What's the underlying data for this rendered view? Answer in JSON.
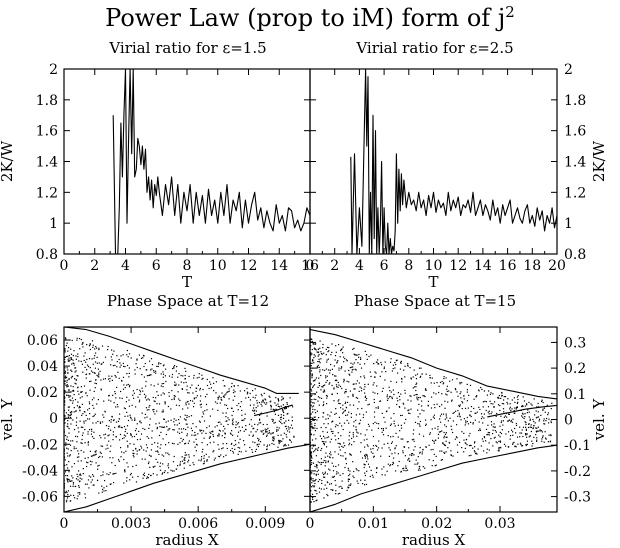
{
  "figure": {
    "title": "Power Law (prop to iM) form of j",
    "title_sup": "2"
  },
  "chart_data": [
    {
      "type": "line",
      "subtitle": "Virial ratio for ε=1.5",
      "xlabel": "T",
      "ylabel": "2K/W",
      "xlim": [
        0,
        16
      ],
      "ylim": [
        0.8,
        2.0
      ],
      "xticks": [
        0,
        2,
        4,
        6,
        8,
        10,
        12,
        14,
        16
      ],
      "yticks": [
        0.8,
        1,
        1.2,
        1.4,
        1.6,
        1.8,
        2
      ],
      "yaxis_side": "left",
      "grid": false,
      "series": [
        {
          "x": [
            3.2,
            3.35,
            3.5,
            3.6,
            3.7,
            3.8,
            3.9,
            4.0,
            4.1,
            4.2,
            4.3,
            4.4,
            4.5,
            4.6,
            4.7,
            4.8,
            4.9,
            5.0,
            5.1,
            5.2,
            5.3,
            5.4,
            5.5,
            5.6,
            5.7,
            5.8,
            5.9,
            6.0,
            6.1,
            6.2,
            6.4,
            6.6,
            6.8,
            7.0,
            7.2,
            7.4,
            7.6,
            7.8,
            8.0,
            8.2,
            8.4,
            8.6,
            8.8,
            9.0,
            9.2,
            9.4,
            9.6,
            9.8,
            10.0,
            10.2,
            10.4,
            10.6,
            10.8,
            11.0,
            11.2,
            11.4,
            11.6,
            11.8,
            12.0,
            12.2,
            12.4,
            12.6,
            12.8,
            13.0,
            13.2,
            13.4,
            13.6,
            13.8,
            14.0,
            14.2,
            14.4,
            14.6,
            14.8,
            15.0,
            15.2,
            15.4,
            15.6,
            15.8,
            16.0
          ],
          "y": [
            1.7,
            0.8,
            0.8,
            1.1,
            1.65,
            1.3,
            1.72,
            2.0,
            1.0,
            1.55,
            2.0,
            1.45,
            2.0,
            1.3,
            1.35,
            1.55,
            1.5,
            1.38,
            1.5,
            1.35,
            1.48,
            1.2,
            1.3,
            1.15,
            1.28,
            1.1,
            1.25,
            1.18,
            1.3,
            1.2,
            1.05,
            1.25,
            1.12,
            1.3,
            1.05,
            1.25,
            1.0,
            1.2,
            1.08,
            1.25,
            1.0,
            1.2,
            1.05,
            1.18,
            1.0,
            1.22,
            1.05,
            1.15,
            1.0,
            1.2,
            1.05,
            1.25,
            1.0,
            1.15,
            1.08,
            1.2,
            0.97,
            1.15,
            1.0,
            1.12,
            1.2,
            1.02,
            1.1,
            0.97,
            1.08,
            1.0,
            0.95,
            1.12,
            1.0,
            1.05,
            0.95,
            1.1,
            1.08,
            0.97,
            1.02,
            0.95,
            1.0,
            1.1,
            1.05
          ]
        }
      ]
    },
    {
      "type": "line",
      "subtitle": "Virial ratio for ε=2.5",
      "xlabel": "T",
      "ylabel": "2K/W",
      "xlim": [
        0,
        20
      ],
      "ylim": [
        0.8,
        2.0
      ],
      "xticks": [
        0,
        2,
        4,
        6,
        8,
        10,
        12,
        14,
        16,
        18,
        20
      ],
      "yticks": [
        0.8,
        1,
        1.2,
        1.4,
        1.6,
        1.8,
        2
      ],
      "yaxis_side": "right",
      "grid": false,
      "series": [
        {
          "x": [
            3.3,
            3.4,
            3.6,
            3.8,
            4.0,
            4.2,
            4.4,
            4.5,
            4.6,
            4.7,
            4.8,
            4.9,
            5.0,
            5.1,
            5.2,
            5.3,
            5.4,
            5.5,
            5.6,
            5.7,
            5.8,
            5.9,
            6.0,
            6.1,
            6.2,
            6.3,
            6.4,
            6.5,
            6.6,
            6.7,
            6.8,
            6.9,
            7.0,
            7.1,
            7.2,
            7.3,
            7.4,
            7.5,
            7.6,
            7.8,
            8.0,
            8.2,
            8.4,
            8.6,
            8.8,
            9.0,
            9.2,
            9.4,
            9.6,
            9.8,
            10.0,
            10.2,
            10.4,
            10.6,
            10.8,
            11.0,
            11.2,
            11.4,
            11.6,
            11.8,
            12.0,
            12.2,
            12.4,
            12.6,
            12.8,
            13.0,
            13.2,
            13.4,
            13.6,
            13.8,
            14.0,
            14.2,
            14.4,
            14.6,
            14.8,
            15.0,
            15.2,
            15.4,
            15.6,
            15.8,
            16.0,
            16.2,
            16.4,
            16.6,
            16.8,
            17.0,
            17.2,
            17.4,
            17.6,
            17.8,
            18.0,
            18.2,
            18.4,
            18.6,
            18.8,
            19.0,
            19.2,
            19.4,
            19.6,
            19.8,
            20.0
          ],
          "y": [
            1.43,
            0.8,
            1.45,
            0.8,
            1.1,
            0.85,
            1.6,
            2.0,
            1.5,
            1.95,
            0.8,
            1.2,
            0.8,
            1.7,
            0.9,
            1.6,
            0.8,
            1.1,
            0.8,
            1.0,
            1.4,
            0.8,
            1.1,
            0.85,
            0.8,
            1.0,
            0.8,
            0.9,
            0.8,
            0.85,
            0.82,
            0.95,
            1.45,
            1.0,
            1.35,
            1.08,
            1.32,
            1.12,
            1.28,
            1.1,
            1.2,
            1.12,
            1.15,
            1.08,
            1.2,
            1.1,
            1.15,
            1.05,
            1.18,
            1.1,
            1.2,
            1.07,
            1.15,
            1.1,
            1.13,
            1.05,
            1.2,
            1.08,
            1.15,
            1.1,
            1.17,
            1.05,
            1.12,
            1.1,
            1.15,
            1.07,
            1.2,
            1.05,
            1.1,
            1.15,
            1.05,
            1.12,
            1.08,
            1.02,
            1.15,
            1.05,
            1.1,
            1.0,
            1.12,
            1.05,
            1.1,
            1.15,
            1.0,
            1.05,
            1.1,
            1.03,
            1.0,
            1.08,
            1.12,
            1.0,
            1.05,
            0.98,
            1.1,
            1.02,
            1.08,
            0.95,
            1.05,
            1.0,
            1.1,
            0.97,
            1.05
          ]
        }
      ]
    },
    {
      "type": "scatter",
      "subtitle": "Phase Space at T=12",
      "xlabel": "radius X",
      "ylabel": "vel. Y",
      "xlim": [
        0,
        0.011
      ],
      "ylim": [
        -0.072,
        0.07
      ],
      "xticks": [
        0,
        0.003,
        0.006,
        0.009
      ],
      "xticklabels": [
        "0",
        "0.003",
        "0.006",
        "0.009"
      ],
      "yticks": [
        -0.06,
        -0.04,
        -0.02,
        0,
        0.02,
        0.04,
        0.06
      ],
      "yticklabels": [
        "-0.06",
        "-0.04",
        "-0.02",
        "0",
        "0.02",
        "0.04",
        "0.06"
      ],
      "yaxis_side": "left",
      "grid": false,
      "envelope": {
        "upper": {
          "x": [
            0,
            0.001,
            0.002,
            0.003,
            0.004,
            0.005,
            0.006,
            0.007,
            0.008,
            0.009,
            0.0095,
            0.0105
          ],
          "y": [
            0.07,
            0.068,
            0.063,
            0.057,
            0.051,
            0.045,
            0.039,
            0.033,
            0.028,
            0.023,
            0.019,
            0.019
          ]
        },
        "lower": {
          "x": [
            0,
            0.001,
            0.002,
            0.003,
            0.004,
            0.005,
            0.006,
            0.007,
            0.008,
            0.009,
            0.01,
            0.011
          ],
          "y": [
            -0.072,
            -0.068,
            -0.062,
            -0.056,
            -0.05,
            -0.045,
            -0.04,
            -0.035,
            -0.031,
            -0.027,
            -0.023,
            -0.02
          ]
        }
      },
      "stream_tip": {
        "x": [
          0.0085,
          0.009,
          0.0095,
          0.0098,
          0.0102
        ],
        "y": [
          0.002,
          0.004,
          0.006,
          0.008,
          0.01
        ]
      }
    },
    {
      "type": "scatter",
      "subtitle": "Phase Space at T=15",
      "xlabel": "radius X",
      "ylabel": "vel. Y",
      "xlim": [
        0,
        0.039
      ],
      "ylim": [
        -0.36,
        0.36
      ],
      "xticks": [
        0,
        0.01,
        0.02,
        0.03
      ],
      "xticklabels": [
        "0",
        "0.01",
        "0.02",
        "0.03"
      ],
      "yticks": [
        -0.3,
        -0.2,
        -0.1,
        0,
        0.1,
        0.2,
        0.3
      ],
      "yticklabels": [
        "-0.3",
        "-0.2",
        "-0.1",
        "0",
        "0.1",
        "0.2",
        "0.3"
      ],
      "yaxis_side": "right",
      "grid": false,
      "envelope": {
        "upper": {
          "x": [
            0,
            0.004,
            0.008,
            0.012,
            0.016,
            0.02,
            0.024,
            0.028,
            0.032,
            0.036,
            0.039
          ],
          "y": [
            0.35,
            0.33,
            0.3,
            0.27,
            0.24,
            0.2,
            0.17,
            0.13,
            0.11,
            0.09,
            0.08
          ]
        },
        "lower": {
          "x": [
            0,
            0.004,
            0.008,
            0.012,
            0.016,
            0.02,
            0.024,
            0.028,
            0.032,
            0.036,
            0.039
          ],
          "y": [
            -0.36,
            -0.33,
            -0.29,
            -0.26,
            -0.23,
            -0.2,
            -0.17,
            -0.15,
            -0.13,
            -0.11,
            -0.1
          ]
        }
      },
      "stream_tip": {
        "x": [
          0.028,
          0.031,
          0.034,
          0.037,
          0.039
        ],
        "y": [
          0.01,
          0.025,
          0.04,
          0.05,
          0.055
        ]
      }
    }
  ]
}
